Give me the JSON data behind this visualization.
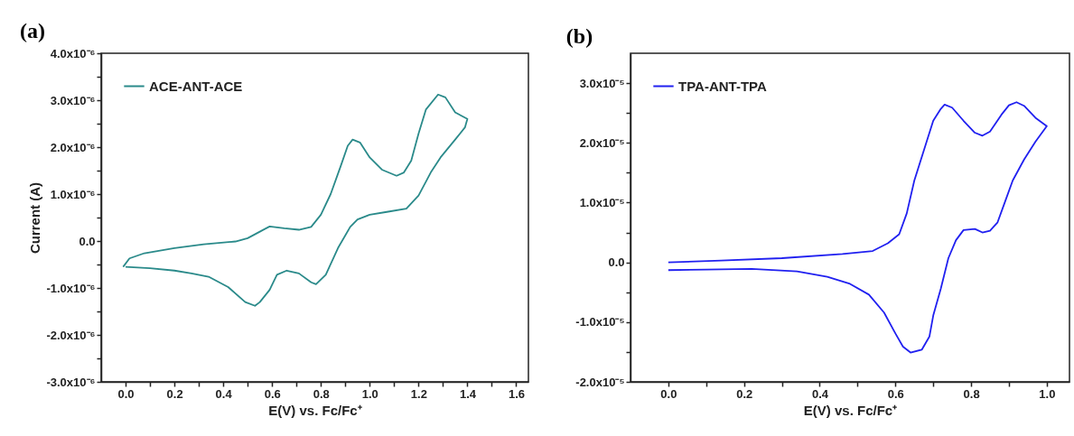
{
  "chart_data": [
    {
      "type": "line",
      "title": "(a)",
      "xlabel": "E(V) vs. Fc/Fc⁺",
      "ylabel": "Current (A)",
      "xlim": [
        -0.1,
        1.65
      ],
      "ylim": [
        -3e-06,
        4e-06
      ],
      "xticks": [
        {
          "value": 0,
          "label": "0.0"
        },
        {
          "value": 0.1,
          "label": null
        },
        0.2,
        {
          "value": 0.3,
          "label": null
        },
        0.4,
        {
          "value": 0.5,
          "label": null
        },
        0.6,
        {
          "value": 0.7,
          "label": null
        },
        0.8,
        {
          "value": 0.9,
          "label": null
        },
        {
          "value": 1,
          "label": "1.0"
        },
        {
          "value": 1.1,
          "label": null
        },
        1.2,
        {
          "value": 1.3,
          "label": null
        },
        1.4,
        {
          "value": 1.5,
          "label": null
        },
        1.6
      ],
      "yticks": [
        {
          "value": -3e-06,
          "label": "-3.0x10⁻⁶"
        },
        {
          "value": -2.5e-06,
          "label": null
        },
        {
          "value": -2e-06,
          "label": "-2.0x10⁻⁶"
        },
        {
          "value": -1.5e-06,
          "label": null
        },
        {
          "value": -1e-06,
          "label": "-1.0x10⁻⁶"
        },
        {
          "value": -5e-07,
          "label": null
        },
        {
          "value": 0,
          "label": "0.0"
        },
        {
          "value": 5e-07,
          "label": null
        },
        {
          "value": 1e-06,
          "label": "1.0x10⁻⁶"
        },
        {
          "value": 1.5e-06,
          "label": null
        },
        {
          "value": 2e-06,
          "label": "2.0x10⁻⁶"
        },
        {
          "value": 2.5e-06,
          "label": null
        },
        {
          "value": 3e-06,
          "label": "3.0x10⁻⁶"
        },
        {
          "value": 3.5e-06,
          "label": null
        },
        {
          "value": 4e-06,
          "label": "4.0x10⁻⁶"
        }
      ],
      "legend": "top left",
      "series": [
        {
          "name": "ACE-ANT-ACE",
          "color": "#2a8a8a",
          "x": [
            -0.01,
            0.016,
            0.077,
            0.2,
            0.32,
            0.45,
            0.5,
            0.55,
            0.59,
            0.65,
            0.71,
            0.76,
            0.8,
            0.84,
            0.88,
            0.91,
            0.93,
            0.96,
            1.0,
            1.05,
            1.11,
            1.14,
            1.17,
            1.2,
            1.23,
            1.28,
            1.31,
            1.35,
            1.4,
            1.39,
            1.35,
            1.29,
            1.25,
            1.2,
            1.15,
            1.07,
            1.0,
            0.95,
            0.92,
            0.87,
            0.82,
            0.78,
            0.76,
            0.71,
            0.66,
            0.62,
            0.59,
            0.55,
            0.53,
            0.49,
            0.42,
            0.34,
            0.27,
            0.2,
            0.1,
            0.0
          ],
          "values": [
            -5.5e-07,
            -3.7e-07,
            -2.6e-07,
            -1.5e-07,
            -7e-08,
            -1e-08,
            6e-08,
            2e-07,
            3.1e-07,
            2.7e-07,
            2.4e-07,
            3e-07,
            5.6e-07,
            1e-06,
            1.58e-06,
            2.03e-06,
            2.16e-06,
            2.1e-06,
            1.78e-06,
            1.52e-06,
            1.39e-06,
            1.46e-06,
            1.71e-06,
            2.29e-06,
            2.8e-06,
            3.12e-06,
            3.06e-06,
            2.74e-06,
            2.6e-06,
            2.42e-06,
            2.16e-06,
            1.78e-06,
            1.46e-06,
            9.7e-07,
            6.9e-07,
            6.2e-07,
            5.6e-07,
            4.6e-07,
            3e-07,
            -1.5e-07,
            -7.2e-07,
            -9.2e-07,
            -8.8e-07,
            -6.9e-07,
            -6.3e-07,
            -7.2e-07,
            -1.04e-06,
            -1.3e-06,
            -1.38e-06,
            -1.3e-06,
            -9.8e-07,
            -7.6e-07,
            -6.9e-07,
            -6.3e-07,
            -5.8e-07,
            -5.5e-07
          ]
        }
      ]
    },
    {
      "type": "line",
      "title": "(b)",
      "xlabel": "E(V) vs. Fc/Fc⁺",
      "xlim": [
        -0.1,
        1.06
      ],
      "ylim": [
        -2e-05,
        3.5e-05
      ],
      "xticks": [
        {
          "value": 0,
          "label": "0.0"
        },
        {
          "value": 0.1,
          "label": null
        },
        0.2,
        {
          "value": 0.3,
          "label": null
        },
        0.4,
        {
          "value": 0.5,
          "label": null
        },
        0.6,
        {
          "value": 0.7,
          "label": null
        },
        0.8,
        {
          "value": 0.9,
          "label": null
        },
        {
          "value": 1,
          "label": "1.0"
        }
      ],
      "yticks": [
        {
          "value": -2e-05,
          "label": "-2.0x10⁻⁵"
        },
        {
          "value": -1.5e-05,
          "label": null
        },
        {
          "value": -1e-05,
          "label": "-1.0x10⁻⁵"
        },
        {
          "value": -5e-06,
          "label": null
        },
        {
          "value": 0,
          "label": "0.0"
        },
        {
          "value": 5e-06,
          "label": null
        },
        {
          "value": 1e-05,
          "label": "1.0x10⁻⁵"
        },
        {
          "value": 1.5e-05,
          "label": null
        },
        {
          "value": 2e-05,
          "label": "2.0x10⁻⁵"
        },
        {
          "value": 2.5e-05,
          "label": null
        },
        {
          "value": 3e-05,
          "label": "3.0x10⁻⁵"
        }
      ],
      "legend": "top left",
      "series": [
        {
          "name": "TPA-ANT-TPA",
          "color": "#2020f0",
          "x": [
            0,
            0.14,
            0.3,
            0.46,
            0.54,
            0.58,
            0.61,
            0.63,
            0.65,
            0.68,
            0.7,
            0.72,
            0.73,
            0.75,
            0.78,
            0.81,
            0.83,
            0.85,
            0.88,
            0.9,
            0.92,
            0.94,
            0.97,
            1.0,
            0.97,
            0.94,
            0.91,
            0.89,
            0.87,
            0.85,
            0.83,
            0.81,
            0.78,
            0.76,
            0.74,
            0.72,
            0.7,
            0.69,
            0.67,
            0.64,
            0.62,
            0.6,
            0.57,
            0.53,
            0.48,
            0.42,
            0.34,
            0.22,
            0.1,
            0
          ],
          "values": [
            0,
            3e-07,
            7e-07,
            1.4e-06,
            1.9e-06,
            3.2e-06,
            4.7e-06,
            8.2e-06,
            1.37e-05,
            1.97e-05,
            2.37e-05,
            2.57e-05,
            2.64e-05,
            2.59e-05,
            2.37e-05,
            2.17e-05,
            2.12e-05,
            2.19e-05,
            2.47e-05,
            2.63e-05,
            2.68e-05,
            2.62e-05,
            2.42e-05,
            2.28e-05,
            2.02e-05,
            1.72e-05,
            1.37e-05,
            1.02e-05,
            6.7e-06,
            5.3e-06,
            5e-06,
            5.6e-06,
            5.4e-06,
            3.7e-06,
            7e-07,
            -4.4e-06,
            -8.9e-06,
            -1.24e-05,
            -1.46e-05,
            -1.51e-05,
            -1.41e-05,
            -1.19e-05,
            -8.4e-06,
            -5.4e-06,
            -3.6e-06,
            -2.4e-06,
            -1.5e-06,
            -1.1e-06,
            -1.2e-06,
            -1.3e-06
          ]
        }
      ]
    }
  ]
}
